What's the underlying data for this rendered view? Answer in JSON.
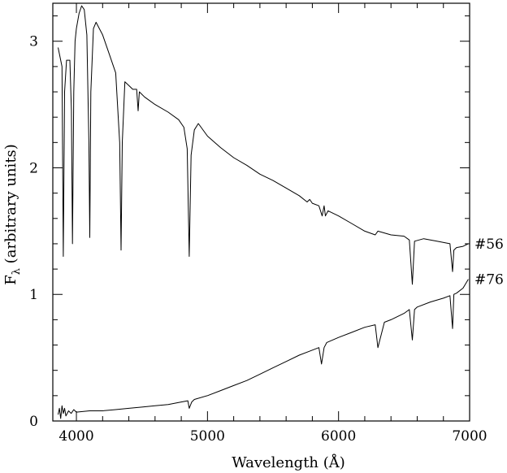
{
  "chart_data": {
    "type": "line",
    "title": "",
    "xlabel": "Wavelength (Å)",
    "ylabel_main": "F",
    "ylabel_sub": "λ",
    "ylabel_rest": " (arbitrary units)",
    "xlim": [
      3820,
      7000
    ],
    "ylim": [
      0,
      3.3
    ],
    "x_ticks": [
      4000,
      5000,
      6000,
      7000
    ],
    "x_tick_labels": [
      "4000",
      "5000",
      "6000",
      "7000"
    ],
    "y_ticks": [
      0,
      1,
      2,
      3
    ],
    "y_tick_labels": [
      "0",
      "1",
      "2",
      "3"
    ],
    "grid": false,
    "series": [
      {
        "name": "#56",
        "color": "#000000",
        "x": [
          3860,
          3890,
          3900,
          3910,
          3925,
          3950,
          3962,
          3970,
          3980,
          3990,
          4000,
          4020,
          4040,
          4060,
          4080,
          4095,
          4102,
          4110,
          4130,
          4150,
          4200,
          4250,
          4300,
          4330,
          4341,
          4350,
          4370,
          4400,
          4430,
          4460,
          4471,
          4480,
          4520,
          4600,
          4700,
          4780,
          4820,
          4845,
          4861,
          4875,
          4900,
          4930,
          5000,
          5100,
          5200,
          5300,
          5400,
          5500,
          5600,
          5700,
          5760,
          5780,
          5800,
          5850,
          5875,
          5890,
          5900,
          5920,
          6000,
          6100,
          6200,
          6280,
          6300,
          6400,
          6500,
          6540,
          6563,
          6580,
          6650,
          6750,
          6850,
          6870,
          6880,
          6900,
          6950,
          6990
        ],
        "y": [
          2.95,
          2.8,
          1.3,
          2.6,
          2.85,
          2.85,
          2.45,
          1.4,
          2.6,
          3.0,
          3.1,
          3.22,
          3.28,
          3.25,
          3.05,
          2.2,
          1.45,
          2.6,
          3.1,
          3.15,
          3.05,
          2.9,
          2.75,
          2.2,
          1.35,
          2.2,
          2.68,
          2.65,
          2.62,
          2.62,
          2.45,
          2.6,
          2.56,
          2.5,
          2.44,
          2.38,
          2.32,
          2.15,
          1.3,
          2.1,
          2.3,
          2.35,
          2.25,
          2.16,
          2.08,
          2.02,
          1.95,
          1.9,
          1.84,
          1.78,
          1.73,
          1.75,
          1.72,
          1.7,
          1.62,
          1.7,
          1.62,
          1.66,
          1.62,
          1.56,
          1.5,
          1.47,
          1.5,
          1.47,
          1.46,
          1.43,
          1.08,
          1.42,
          1.44,
          1.42,
          1.4,
          1.18,
          1.35,
          1.37,
          1.38,
          1.4
        ]
      },
      {
        "name": "#76",
        "color": "#000000",
        "x": [
          3860,
          3870,
          3880,
          3890,
          3900,
          3910,
          3920,
          3940,
          3960,
          3980,
          4000,
          4100,
          4200,
          4300,
          4400,
          4500,
          4600,
          4700,
          4800,
          4850,
          4861,
          4880,
          4900,
          5000,
          5100,
          5200,
          5300,
          5400,
          5500,
          5600,
          5700,
          5800,
          5850,
          5870,
          5890,
          5910,
          6000,
          6100,
          6200,
          6280,
          6300,
          6350,
          6400,
          6500,
          6540,
          6563,
          6580,
          6600,
          6700,
          6800,
          6850,
          6870,
          6880,
          6900,
          6950,
          6990
        ],
        "y": [
          0.05,
          0.1,
          0.02,
          0.12,
          0.06,
          0.1,
          0.04,
          0.08,
          0.06,
          0.09,
          0.07,
          0.08,
          0.08,
          0.09,
          0.1,
          0.11,
          0.12,
          0.13,
          0.15,
          0.16,
          0.1,
          0.15,
          0.17,
          0.2,
          0.24,
          0.28,
          0.32,
          0.37,
          0.42,
          0.47,
          0.52,
          0.56,
          0.58,
          0.45,
          0.58,
          0.62,
          0.66,
          0.7,
          0.74,
          0.76,
          0.58,
          0.78,
          0.8,
          0.85,
          0.88,
          0.64,
          0.88,
          0.9,
          0.94,
          0.97,
          0.99,
          0.73,
          1.0,
          1.01,
          1.05,
          1.12
        ]
      }
    ]
  }
}
